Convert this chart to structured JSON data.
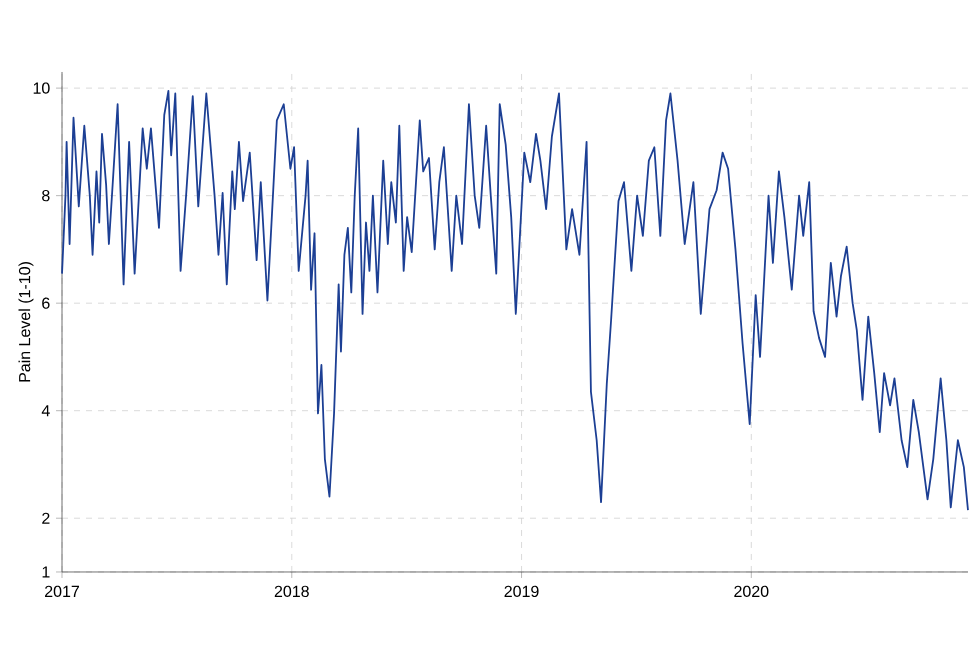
{
  "chart_data": {
    "type": "line",
    "ylabel": "Pain Level (1-10)",
    "x": [
      2017.0,
      2017.015,
      2017.02,
      2017.033,
      2017.05,
      2017.073,
      2017.097,
      2017.121,
      2017.133,
      2017.15,
      2017.162,
      2017.174,
      2017.192,
      2017.204,
      2017.221,
      2017.242,
      2017.268,
      2017.292,
      2017.316,
      2017.351,
      2017.369,
      2017.387,
      2017.422,
      2017.445,
      2017.463,
      2017.475,
      2017.493,
      2017.516,
      2017.54,
      2017.569,
      2017.593,
      2017.628,
      2017.664,
      2017.681,
      2017.699,
      2017.717,
      2017.741,
      2017.752,
      2017.77,
      2017.788,
      2017.817,
      2017.847,
      2017.865,
      2017.894,
      2017.918,
      2017.935,
      2017.965,
      2017.994,
      2018.01,
      2018.03,
      2018.06,
      2018.069,
      2018.084,
      2018.099,
      2018.114,
      2018.129,
      2018.144,
      2018.164,
      2018.184,
      2018.204,
      2018.214,
      2018.229,
      2018.244,
      2018.259,
      2018.274,
      2018.289,
      2018.308,
      2018.323,
      2018.338,
      2018.353,
      2018.373,
      2018.398,
      2018.418,
      2018.433,
      2018.453,
      2018.468,
      2018.487,
      2018.502,
      2018.522,
      2018.557,
      2018.572,
      2018.597,
      2018.622,
      2018.642,
      2018.662,
      2018.696,
      2018.716,
      2018.741,
      2018.771,
      2018.796,
      2018.816,
      2018.846,
      2018.866,
      2018.89,
      2018.905,
      2018.931,
      2018.955,
      2018.975,
      2019.012,
      2019.038,
      2019.063,
      2019.082,
      2019.107,
      2019.132,
      2019.163,
      2019.195,
      2019.22,
      2019.252,
      2019.283,
      2019.302,
      2019.327,
      2019.346,
      2019.371,
      2019.39,
      2019.422,
      2019.446,
      2019.478,
      2019.503,
      2019.528,
      2019.554,
      2019.578,
      2019.604,
      2019.629,
      2019.648,
      2019.679,
      2019.71,
      2019.748,
      2019.78,
      2019.818,
      2019.849,
      2019.875,
      2019.899,
      2019.931,
      2019.962,
      2019.993,
      2020.019,
      2020.038,
      2020.075,
      2020.094,
      2020.12,
      2020.144,
      2020.176,
      2020.208,
      2020.226,
      2020.252,
      2020.271,
      2020.295,
      2020.321,
      2020.346,
      2020.371,
      2020.39,
      2020.415,
      2020.441,
      2020.459,
      2020.484,
      2020.509,
      2020.535,
      2020.559,
      2020.578,
      2020.604,
      2020.623,
      2020.654,
      2020.679,
      2020.705,
      2020.729,
      2020.767,
      2020.792,
      2020.824,
      2020.849,
      2020.868,
      2020.899,
      2020.925,
      2020.943
    ],
    "series": [
      {
        "color": "#1c3f94",
        "values": [
          6.55,
          8.0,
          9.0,
          7.1,
          9.45,
          7.8,
          9.3,
          8.0,
          6.9,
          8.45,
          7.5,
          9.15,
          8.2,
          7.1,
          8.25,
          9.7,
          6.35,
          9.0,
          6.55,
          9.25,
          8.5,
          9.25,
          7.4,
          9.5,
          9.95,
          8.75,
          9.9,
          6.6,
          8.0,
          9.85,
          7.8,
          9.9,
          8.0,
          6.9,
          8.05,
          6.35,
          8.45,
          7.75,
          9.0,
          7.9,
          8.8,
          6.8,
          8.25,
          6.05,
          8.0,
          9.4,
          9.7,
          8.5,
          8.9,
          6.6,
          8.0,
          8.65,
          6.25,
          7.3,
          3.95,
          4.85,
          3.1,
          2.4,
          3.95,
          6.35,
          5.1,
          6.9,
          7.4,
          6.2,
          8.0,
          9.25,
          5.8,
          7.5,
          6.6,
          8.0,
          6.2,
          8.65,
          7.1,
          8.25,
          7.5,
          9.3,
          6.6,
          7.6,
          6.95,
          9.4,
          8.45,
          8.7,
          7.0,
          8.25,
          8.9,
          6.6,
          8.0,
          7.1,
          9.7,
          8.0,
          7.4,
          9.3,
          8.0,
          6.55,
          9.7,
          8.95,
          7.6,
          5.8,
          8.8,
          8.25,
          9.15,
          8.65,
          7.75,
          9.1,
          9.9,
          7.0,
          7.75,
          6.9,
          9.0,
          4.35,
          3.45,
          2.3,
          4.5,
          5.7,
          7.9,
          8.25,
          6.6,
          8.0,
          7.25,
          8.65,
          8.9,
          7.25,
          9.4,
          9.9,
          8.65,
          7.1,
          8.25,
          5.8,
          7.75,
          8.1,
          8.8,
          8.5,
          7.0,
          5.25,
          3.75,
          6.15,
          5.0,
          8.0,
          6.75,
          8.45,
          7.6,
          6.25,
          8.0,
          7.25,
          8.25,
          5.85,
          5.35,
          5.0,
          6.75,
          5.75,
          6.5,
          7.05,
          6.0,
          5.5,
          4.2,
          5.75,
          4.7,
          3.6,
          4.7,
          4.1,
          4.6,
          3.45,
          2.95,
          4.2,
          3.6,
          2.35,
          3.1,
          4.6,
          3.45,
          2.2,
          3.45,
          2.95,
          2.15
        ]
      }
    ],
    "xlim": [
      2017,
      2020.943
    ],
    "xticks": [
      2017,
      2018,
      2019,
      2020
    ],
    "ylim": [
      1,
      10.3
    ],
    "yticks": [
      1,
      2,
      4,
      6,
      8,
      10
    ],
    "grid": true,
    "line_style": "solid",
    "marker": "none"
  }
}
